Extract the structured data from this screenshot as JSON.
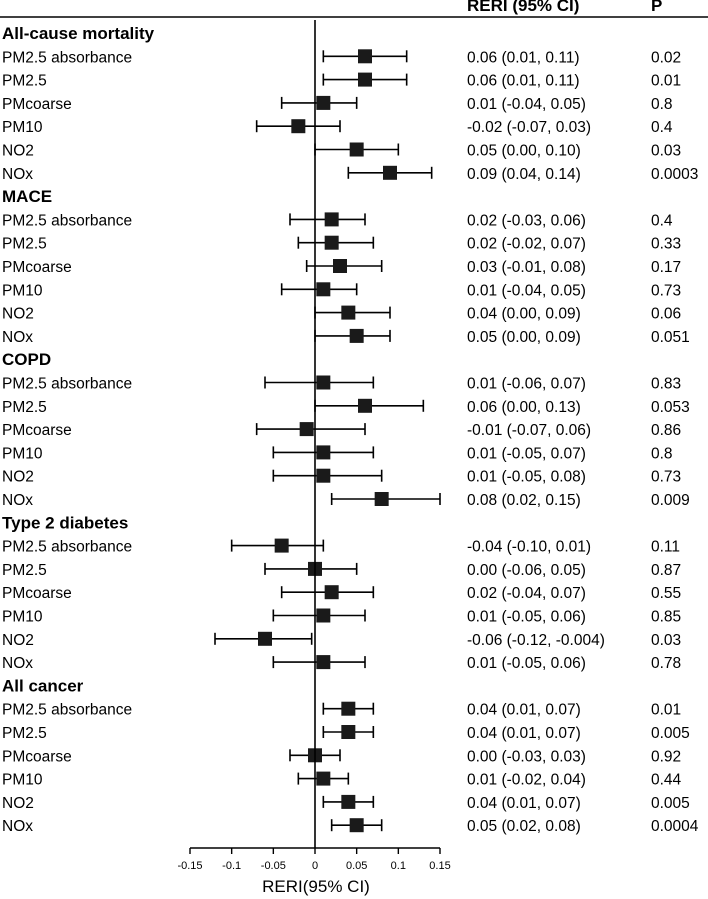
{
  "chart_data": {
    "type": "forest",
    "xlabel": "RERI(95% CI)",
    "xlim": [
      -0.15,
      0.15
    ],
    "xticks": [
      "-0.15",
      "-0.1",
      "-0.05",
      "0",
      "0.05",
      "0.1",
      "0.15"
    ],
    "xtick_values": [
      -0.15,
      -0.1,
      -0.05,
      0,
      0.05,
      0.1,
      0.15
    ],
    "columns": {
      "ci": "RERI (95% CI)",
      "p": "P"
    },
    "groups": [
      {
        "title": "All-cause mortality",
        "rows": [
          {
            "label": "PM2.5 absorbance",
            "est": 0.06,
            "lo": 0.01,
            "hi": 0.11,
            "ci": "0.06 (0.01, 0.11)",
            "p": "0.02"
          },
          {
            "label": "PM2.5",
            "est": 0.06,
            "lo": 0.01,
            "hi": 0.11,
            "ci": "0.06 (0.01, 0.11)",
            "p": "0.01"
          },
          {
            "label": "PMcoarse",
            "est": 0.01,
            "lo": -0.04,
            "hi": 0.05,
            "ci": "0.01 (-0.04, 0.05)",
            "p": "0.8"
          },
          {
            "label": "PM10",
            "est": -0.02,
            "lo": -0.07,
            "hi": 0.03,
            "ci": "-0.02 (-0.07, 0.03)",
            "p": "0.4"
          },
          {
            "label": "NO2",
            "est": 0.05,
            "lo": 0.0,
            "hi": 0.1,
            "ci": "0.05 (0.00, 0.10)",
            "p": "0.03"
          },
          {
            "label": "NOx",
            "est": 0.09,
            "lo": 0.04,
            "hi": 0.14,
            "ci": "0.09 (0.04, 0.14)",
            "p": "0.0003"
          }
        ]
      },
      {
        "title": "MACE",
        "rows": [
          {
            "label": "PM2.5 absorbance",
            "est": 0.02,
            "lo": -0.03,
            "hi": 0.06,
            "ci": "0.02 (-0.03, 0.06)",
            "p": "0.4"
          },
          {
            "label": "PM2.5",
            "est": 0.02,
            "lo": -0.02,
            "hi": 0.07,
            "ci": "0.02 (-0.02, 0.07)",
            "p": "0.33"
          },
          {
            "label": "PMcoarse",
            "est": 0.03,
            "lo": -0.01,
            "hi": 0.08,
            "ci": "0.03 (-0.01, 0.08)",
            "p": "0.17"
          },
          {
            "label": "PM10",
            "est": 0.01,
            "lo": -0.04,
            "hi": 0.05,
            "ci": "0.01 (-0.04, 0.05)",
            "p": "0.73"
          },
          {
            "label": "NO2",
            "est": 0.04,
            "lo": 0.0,
            "hi": 0.09,
            "ci": "0.04 (0.00, 0.09)",
            "p": "0.06"
          },
          {
            "label": "NOx",
            "est": 0.05,
            "lo": 0.0,
            "hi": 0.09,
            "ci": "0.05 (0.00, 0.09)",
            "p": "0.051"
          }
        ]
      },
      {
        "title": "COPD",
        "rows": [
          {
            "label": "PM2.5 absorbance",
            "est": 0.01,
            "lo": -0.06,
            "hi": 0.07,
            "ci": "0.01 (-0.06, 0.07)",
            "p": "0.83"
          },
          {
            "label": "PM2.5",
            "est": 0.06,
            "lo": 0.0,
            "hi": 0.13,
            "ci": "0.06 (0.00, 0.13)",
            "p": "0.053"
          },
          {
            "label": "PMcoarse",
            "est": -0.01,
            "lo": -0.07,
            "hi": 0.06,
            "ci": "-0.01 (-0.07, 0.06)",
            "p": "0.86"
          },
          {
            "label": "PM10",
            "est": 0.01,
            "lo": -0.05,
            "hi": 0.07,
            "ci": "0.01 (-0.05, 0.07)",
            "p": "0.8"
          },
          {
            "label": "NO2",
            "est": 0.01,
            "lo": -0.05,
            "hi": 0.08,
            "ci": "0.01 (-0.05, 0.08)",
            "p": "0.73"
          },
          {
            "label": "NOx",
            "est": 0.08,
            "lo": 0.02,
            "hi": 0.15,
            "ci": "0.08 (0.02, 0.15)",
            "p": "0.009"
          }
        ]
      },
      {
        "title": "Type 2 diabetes",
        "rows": [
          {
            "label": "PM2.5 absorbance",
            "est": -0.04,
            "lo": -0.1,
            "hi": 0.01,
            "ci": "-0.04 (-0.10, 0.01)",
            "p": "0.11"
          },
          {
            "label": "PM2.5",
            "est": 0.0,
            "lo": -0.06,
            "hi": 0.05,
            "ci": "0.00 (-0.06, 0.05)",
            "p": "0.87"
          },
          {
            "label": "PMcoarse",
            "est": 0.02,
            "lo": -0.04,
            "hi": 0.07,
            "ci": "0.02 (-0.04, 0.07)",
            "p": "0.55"
          },
          {
            "label": "PM10",
            "est": 0.01,
            "lo": -0.05,
            "hi": 0.06,
            "ci": "0.01 (-0.05, 0.06)",
            "p": "0.85"
          },
          {
            "label": "NO2",
            "est": -0.06,
            "lo": -0.12,
            "hi": -0.004,
            "ci": "-0.06 (-0.12, -0.004)",
            "p": "0.03"
          },
          {
            "label": "NOx",
            "est": 0.01,
            "lo": -0.05,
            "hi": 0.06,
            "ci": "0.01 (-0.05, 0.06)",
            "p": "0.78"
          }
        ]
      },
      {
        "title": "All cancer",
        "rows": [
          {
            "label": "PM2.5 absorbance",
            "est": 0.04,
            "lo": 0.01,
            "hi": 0.07,
            "ci": "0.04 (0.01, 0.07)",
            "p": "0.01"
          },
          {
            "label": "PM2.5",
            "est": 0.04,
            "lo": 0.01,
            "hi": 0.07,
            "ci": "0.04 (0.01, 0.07)",
            "p": "0.005"
          },
          {
            "label": "PMcoarse",
            "est": 0.0,
            "lo": -0.03,
            "hi": 0.03,
            "ci": "0.00 (-0.03, 0.03)",
            "p": "0.92"
          },
          {
            "label": "PM10",
            "est": 0.01,
            "lo": -0.02,
            "hi": 0.04,
            "ci": "0.01 (-0.02, 0.04)",
            "p": "0.44"
          },
          {
            "label": "NO2",
            "est": 0.04,
            "lo": 0.01,
            "hi": 0.07,
            "ci": "0.04 (0.01, 0.07)",
            "p": "0.005"
          },
          {
            "label": "NOx",
            "est": 0.05,
            "lo": 0.02,
            "hi": 0.08,
            "ci": "0.05 (0.02, 0.08)",
            "p": "0.0004"
          }
        ]
      }
    ]
  }
}
